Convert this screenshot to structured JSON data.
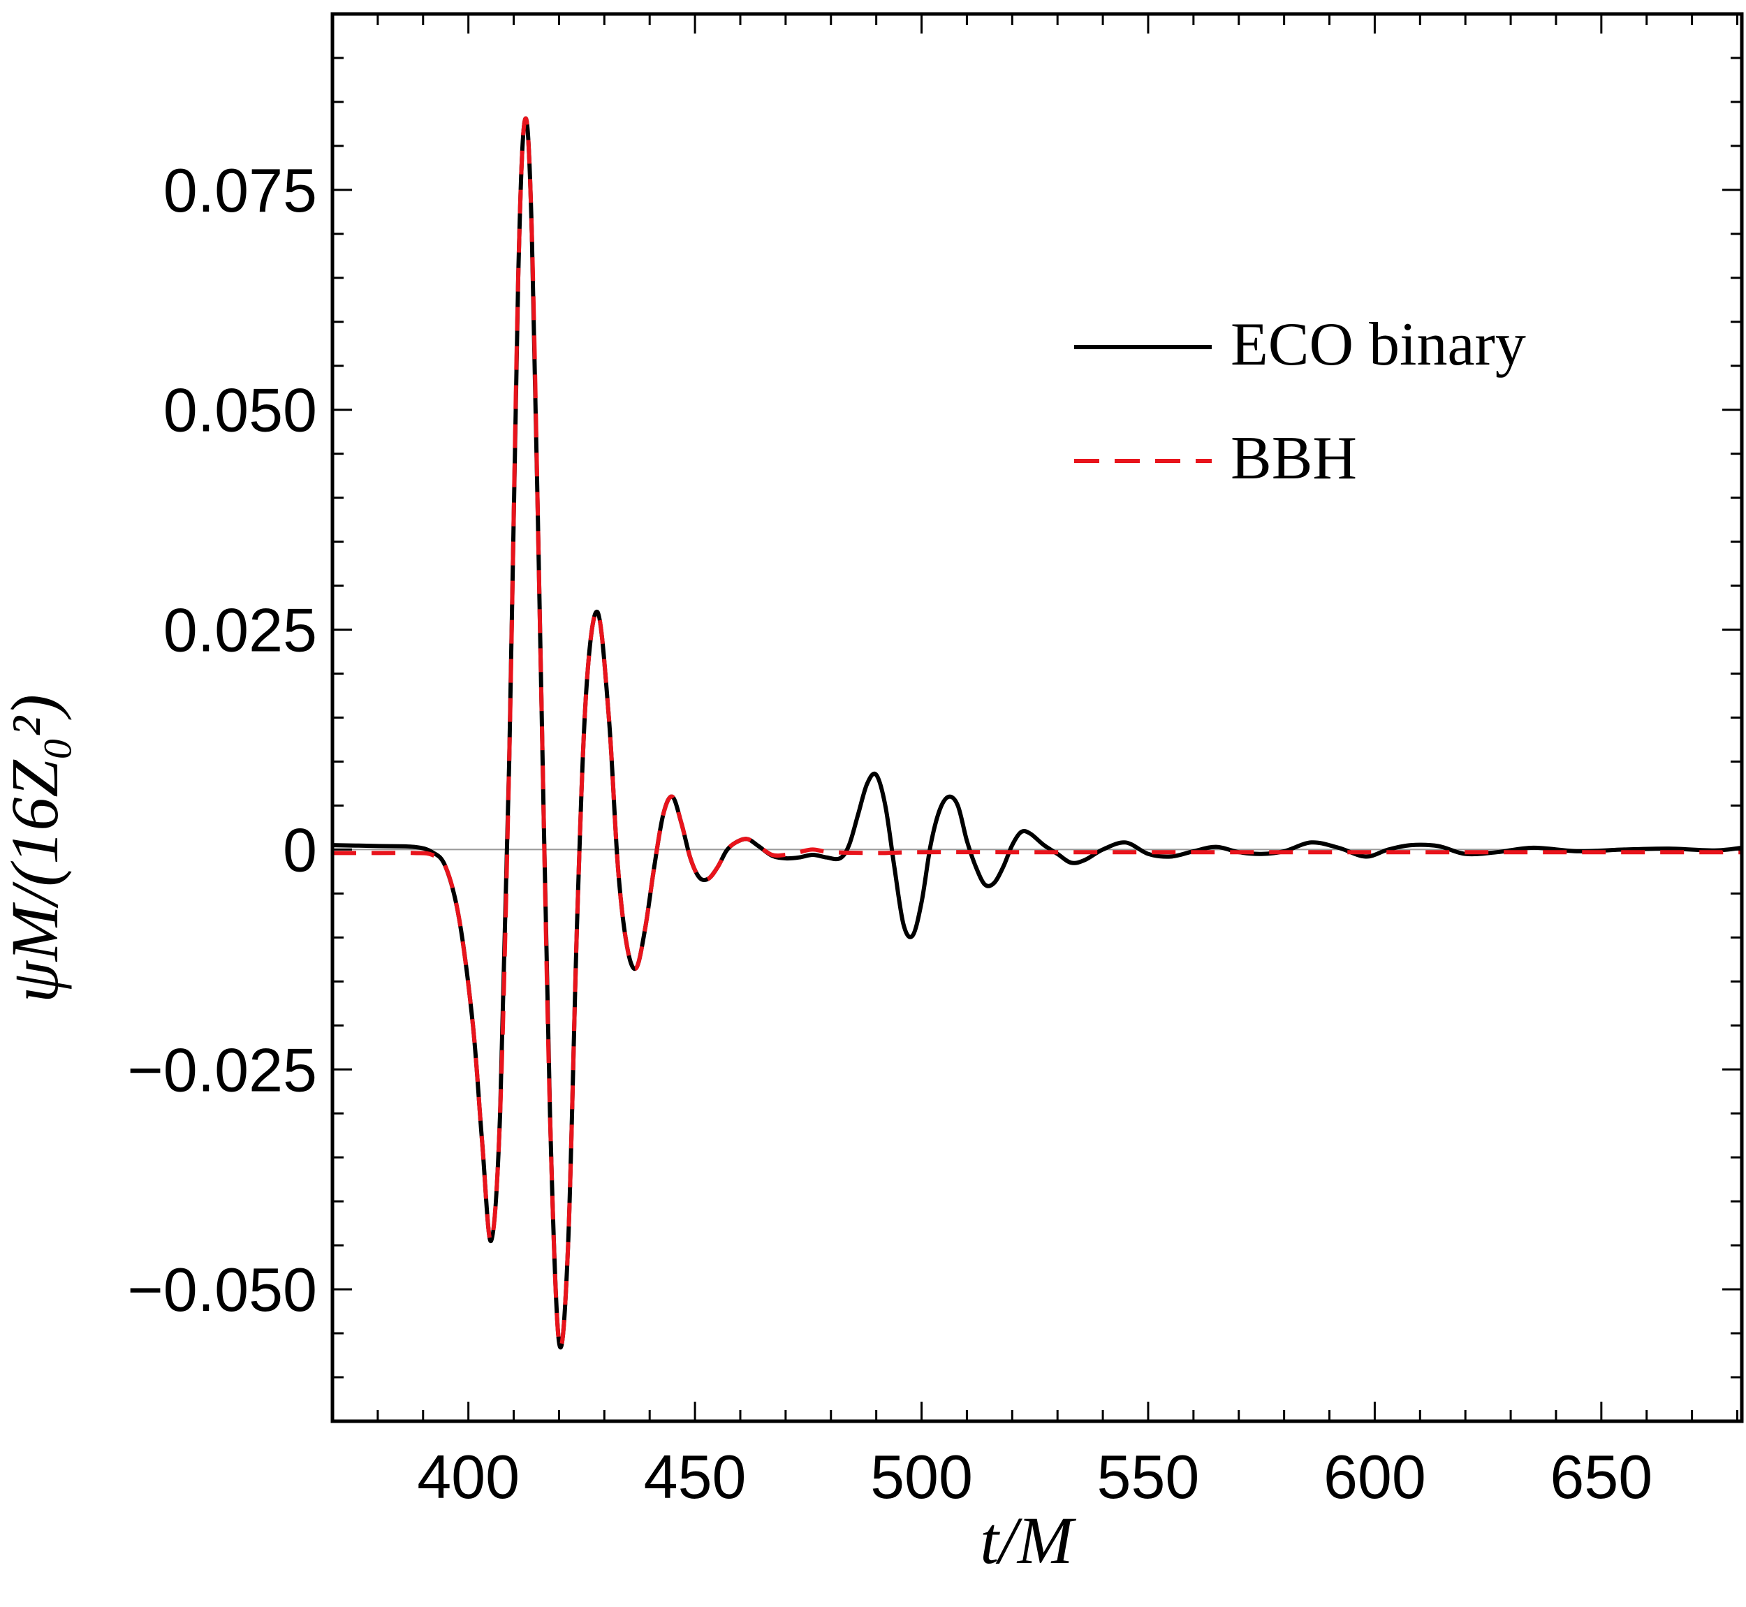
{
  "chart_data": {
    "type": "line",
    "xlabel": "t/M",
    "ylabel": "ψM/(16Z₀²)",
    "xlim": [
      370,
      681
    ],
    "ylim": [
      -0.065,
      0.095
    ],
    "xticks": [
      400,
      450,
      500,
      550,
      600,
      650
    ],
    "xtick_labels": [
      "400",
      "450",
      "500",
      "550",
      "600",
      "650"
    ],
    "yticks": [
      -0.05,
      -0.025,
      0,
      0.025,
      0.05,
      0.075
    ],
    "ytick_labels": [
      "−0.050",
      "−0.025",
      "0",
      "0.025",
      "0.050",
      "0.075"
    ],
    "grid": false,
    "zero_line": true,
    "legend_position": "top-right",
    "series": [
      {
        "name": "ECO binary",
        "color": "#000000",
        "style": "solid",
        "x": [
          370,
          380,
          388,
          392,
          395,
          398,
          401,
          403,
          405,
          407,
          409,
          411,
          412.5,
          414,
          416,
          418,
          420,
          422,
          424,
          426,
          428.5,
          431,
          433,
          435,
          437,
          439,
          441,
          443,
          445,
          447,
          449,
          451,
          453,
          455,
          457,
          459,
          461.5,
          464,
          467,
          470,
          473,
          476,
          479,
          482,
          484,
          486,
          488,
          490,
          492,
          494,
          496,
          498,
          500,
          502,
          504,
          506,
          508,
          510,
          512,
          514,
          516,
          518,
          520,
          522,
          524,
          527,
          530,
          533,
          536,
          540,
          545,
          550,
          555,
          560,
          565,
          570,
          575,
          580,
          586,
          592,
          598,
          603,
          608,
          614,
          620,
          627,
          635,
          645,
          655,
          665,
          675,
          681
        ],
        "y": [
          0.0005,
          0.0004,
          0.0003,
          -0.0003,
          -0.002,
          -0.008,
          -0.02,
          -0.033,
          -0.0445,
          -0.03,
          0.01,
          0.065,
          0.083,
          0.07,
          0.02,
          -0.03,
          -0.056,
          -0.045,
          -0.008,
          0.018,
          0.027,
          0.015,
          -0.002,
          -0.011,
          -0.0135,
          -0.009,
          -0.002,
          0.004,
          0.006,
          0.003,
          -0.001,
          -0.0032,
          -0.0033,
          -0.002,
          -0.0001,
          0.0008,
          0.0012,
          0.0004,
          -0.0007,
          -0.001,
          -0.0009,
          -0.0006,
          -0.0009,
          -0.001,
          0.0005,
          0.004,
          0.0075,
          0.0085,
          0.005,
          -0.002,
          -0.0085,
          -0.0098,
          -0.006,
          0.0005,
          0.0045,
          0.006,
          0.005,
          0.001,
          -0.002,
          -0.004,
          -0.0038,
          -0.002,
          0.0005,
          0.002,
          0.0018,
          0.0005,
          -0.0005,
          -0.0015,
          -0.0012,
          0,
          0.0008,
          -0.0005,
          -0.0008,
          -0.0002,
          0.0003,
          -0.0003,
          -0.0005,
          -0.0002,
          0.0008,
          0.0002,
          -0.0008,
          0,
          0.0005,
          0.0004,
          -0.0005,
          -0.0003,
          0.0002,
          -0.0002,
          0,
          0.0001,
          -0.0001,
          0.0002
        ]
      },
      {
        "name": "BBH",
        "color": "#e8141c",
        "style": "dashed",
        "x": [
          370,
          380,
          388,
          392,
          395,
          398,
          401,
          403,
          405,
          407,
          409,
          411,
          412.5,
          414,
          416,
          418,
          420,
          422,
          424,
          426,
          428.5,
          431,
          433,
          435,
          437,
          439,
          441,
          443,
          445,
          447,
          449,
          451,
          453,
          455,
          457,
          459,
          461.5,
          464,
          467,
          470,
          473,
          476,
          480,
          490,
          500,
          520,
          540,
          560,
          580,
          600,
          620,
          640,
          660,
          681
        ],
        "y": [
          -0.0004,
          -0.0004,
          -0.0004,
          -0.0006,
          -0.002,
          -0.008,
          -0.02,
          -0.033,
          -0.0445,
          -0.03,
          0.01,
          0.065,
          0.083,
          0.07,
          0.02,
          -0.03,
          -0.056,
          -0.045,
          -0.008,
          0.018,
          0.027,
          0.015,
          -0.002,
          -0.011,
          -0.0135,
          -0.009,
          -0.002,
          0.004,
          0.006,
          0.003,
          -0.001,
          -0.0032,
          -0.0033,
          -0.002,
          -0.0001,
          0.0008,
          0.0012,
          0.0004,
          -0.0006,
          -0.0006,
          -0.0003,
          0,
          -0.0003,
          -0.0004,
          -0.0003,
          -0.0003,
          -0.0003,
          -0.0003,
          -0.0003,
          -0.0003,
          -0.0003,
          -0.0003,
          -0.0003,
          -0.0003
        ]
      }
    ]
  }
}
